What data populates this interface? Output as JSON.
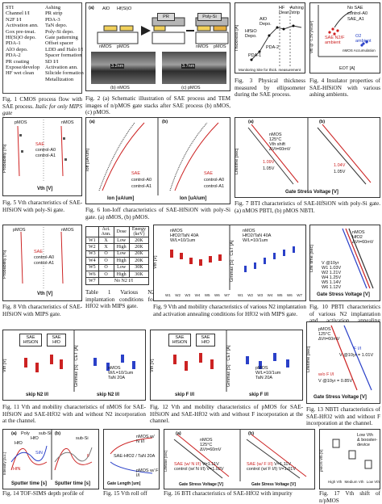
{
  "flow": {
    "col1": [
      "STI",
      "Channel I/I",
      "N2F I/I",
      "Activation ann.",
      "Gox pre-treat.",
      "Hf(Si)O depo.",
      "PDA-1",
      "AlO depo.",
      "PDA-2",
      "PR coating",
      "Expose/develop",
      "HF wet clean"
    ],
    "col2": [
      "Ashing",
      "PR strip",
      "PDA-3",
      "TaN depo.",
      "Poly-Si depo.",
      "Gate patterning",
      "Offset spacer",
      "LDD and Halo I/I",
      "Spacer formation",
      "SD I/I",
      "Activation ann.",
      "Silicide formation",
      "Metallization"
    ]
  },
  "fig1": {
    "caption": "Fig. 1 CMOS process flow with SAE process.",
    "italic": "Italic for only MIPS gate"
  },
  "fig2": {
    "caption": "Fig. 2 (a) Schematic illustration of SAE process and TEM images of n/pMOS gate stacks after SAE process (b) nMOS, (c) pMOS.",
    "a_label": "(a)",
    "alo": "AlO",
    "hfsio": "Hf(Si)O",
    "nmos": "nMOS",
    "pmos": "pMOS",
    "pr": "PR",
    "polysi": "Poly-Si",
    "tem1": "3.2nm",
    "tem2": "3.7nm",
    "b": "(b) nMOS",
    "c": "(c) pMOS"
  },
  "fig3": {
    "caption": "Fig. 3 Physical thickness measured by ellipsometer during the SAE process.",
    "ylabel": "Thickness [A]",
    "xlabel": "Monitoring Site for thick. measurement",
    "labels": [
      "HfSiO Depo.",
      "AlO Depo.",
      "PDA-1",
      "PDA-2",
      "HF clean",
      "Ashing /strip"
    ]
  },
  "fig4": {
    "caption": "Fig. 4 Insulator properties of SAE-HfSiON with various ashing ambients.",
    "ylabel": "Vfb @ -1.2V [A/cm²]",
    "xlabel": "EOT [A]",
    "legend": [
      "No SAE",
      "control-A0",
      "SAE_A1"
    ],
    "ann1": "SAE N2/F ambient",
    "ann2": "O2 ambient",
    "ann3": "nMOS Accumulation"
  },
  "fig5": {
    "caption": "Fig. 5 Vth characteristics of SAE-HfSiON with poly-Si gate.",
    "ylabel": "Probability [%]",
    "xlabel": "Vth [V]",
    "legend": [
      "SAE",
      "control-A0",
      "control-A1"
    ],
    "n": "nMOS",
    "p": "pMOS"
  },
  "fig6": {
    "caption": "Fig. 6 Ion-Ioff characteristics of SAE-HfSiON with poly-Si gate. (a) nMOS, (b) pMOS.",
    "a": "(a)",
    "b": "(b)",
    "ylabel": "Ioff [uA/um]",
    "xlabel": "Ion [uA/um]",
    "legend": [
      "SAE",
      "control-A0",
      "control-A1"
    ]
  },
  "fig7": {
    "caption": "Fig. 7 BTI characteristics of SAE-HfSiON with poly-Si gate. (a) nMOS PBTI, (b) pMOS NBTI.",
    "a": "(a)",
    "b": "(b)",
    "ylabel": "Lifetime [sec]",
    "xlabel": "Gate Stress Voltage [V]",
    "a_ann": [
      "nMOS",
      "125°C",
      "Vth shift",
      "ΔVt=60mV"
    ],
    "vals": [
      "1.09V",
      "1.05V",
      "1.04V",
      "1.05V"
    ]
  },
  "fig8": {
    "caption": "Fig. 8 Vth characteristics of SAE-HfSiON with MIPS gate.",
    "legend": [
      "SAE",
      "control-A0",
      "control-A1"
    ],
    "n": "nMOS",
    "p": "pMOS",
    "xlabel": "Vth [V]",
    "ylabel": "Probability [%]"
  },
  "table1": {
    "caption": "Table 1 Various N2 implantation conditions for HfO2 with MIPS gate.",
    "headers": [
      "",
      "Act. Ann.",
      "Dose",
      "Energy (keV)"
    ],
    "rows": [
      [
        "W1",
        "X",
        "Low",
        "20K"
      ],
      [
        "W2",
        "X",
        "High",
        "20K"
      ],
      [
        "W3",
        "O",
        "Low",
        "20K"
      ],
      [
        "W4",
        "O",
        "High",
        "20K"
      ],
      [
        "W5",
        "O",
        "Low",
        "30K"
      ],
      [
        "W6",
        "O",
        "High",
        "30K"
      ],
      [
        "W7",
        "No N2 I/I",
        ""
      ]
    ]
  },
  "fig9": {
    "caption": "Fig. 9 Vth and mobility characteristics of various N2 implantation and activation annealing conditions for HfO2 with MIPS gate.",
    "left_ylabel": "Vth [V]",
    "right_ylabel": "Gmmax [S] · CET [A]",
    "ann": [
      "nMOS",
      "HfO2/TaN 40A",
      "W/L=10/1um"
    ],
    "cats": [
      "W1",
      "W2",
      "W3",
      "W4",
      "W5",
      "W6",
      "W7"
    ]
  },
  "fig10": {
    "caption": "Fig. 10 PBTI characteristics of various N2 implantation and activation annealing conditions.",
    "ylabel": "Life time [sec]",
    "xlabel": "Gate Stress Voltage [V]",
    "legend_title": "V @10yr",
    "legend": [
      [
        "W1",
        "1.03V"
      ],
      [
        "W2",
        "1.21V"
      ],
      [
        "W4",
        "1.25V"
      ],
      [
        "W5",
        "1.14V"
      ],
      [
        "W6",
        "1.12V"
      ]
    ],
    "ann": [
      "nMOS",
      "HfO2",
      "ΔVt=60mV"
    ]
  },
  "fig11": {
    "caption": "Fig. 11 Vth and mobility characteristics of nMOS for SAE-HfSiON and SAE-HfO2 with and without N2 incorporation at the channel.",
    "boxes": [
      "SAE HfSiON",
      "SAE HfO"
    ],
    "xlabel": "skip N2 I/I",
    "ylabel1": "Vth [V]",
    "ylabel2": "Gmmax [S] · CET [A]",
    "ann": [
      "nMOS",
      "W/L=10/1um",
      "TaN 20A"
    ]
  },
  "fig12": {
    "caption": "Fig. 12 Vth and mobility characteristics of pMOS for SAE-HfSiON and SAE-HfO2 with and without F incorporation at the channel.",
    "boxes": [
      "SAE HfSiON",
      "SAE HfO"
    ],
    "xlabel": "skip F I/I",
    "ylabel1": "Vth [V]",
    "ylabel2": "Gmmax [S] · CET [A]",
    "ann": [
      "pMOS",
      "W/L=10/1um",
      "TaN 20A"
    ]
  },
  "fig13": {
    "caption": "Fig. 13 NBTI characteristics of SAE-HfO2 with and without F incorporation at the channel.",
    "ylabel": "Lifetime [sec]",
    "xlabel": "Gate Stress Voltage [V]",
    "ann": [
      "pMOS",
      "125°C",
      "ΔVt=60mV"
    ],
    "l1": "F I/I",
    "v1": "V @10yr = 1.01V",
    "l2": "w/o F I/I",
    "v2": "V @10yr = 0.85V"
  },
  "fig14": {
    "caption": "Fig. 14 TOF-SIMS depth profile of",
    "a": "(a)",
    "b": "(b)",
    "ylabel": "Intensity [a.u.]",
    "xlabel": "Sputter time [s]",
    "labels": [
      "HfO",
      "sub-Si",
      "SiN",
      "HfN",
      "F"
    ],
    "top": [
      "Poly",
      "HfO",
      "sub-Si"
    ]
  },
  "fig15": {
    "caption": "Fig. 15 Vth roll off",
    "xlabel": "Gate Length [um]",
    "labels": [
      "nMOS w/ N I/I",
      "SAE-HfO2 / TaN 20A",
      "pMOS w/ F I/I"
    ]
  },
  "fig16": {
    "caption": "Fig. 16 BTI characteristics of SAE-HfO2 with impurity",
    "a": "(a)",
    "b": "(b)",
    "ylabel": "Lifetime [sec]",
    "xlabel": "Gate Stress Voltage [V]",
    "a_ann": [
      "nMOS",
      "125°C",
      "ΔVt=60mV"
    ],
    "a_leg": [
      "SAE (w/ N I/I)",
      "control (w/ N I/I)"
    ],
    "a_vals": [
      "V=1.11V",
      "V=1.02V"
    ],
    "b_leg": [
      "SAE (w/ F I/I)",
      "control (w/ F I/I)"
    ],
    "b_vals": [
      "V=1.11V",
      "V=1.01V"
    ]
  },
  "fig17": {
    "caption": "Fig. 17 Vth shift of n/pMOS",
    "ylabel": "pMOS Vth [V]",
    "cats": [
      "High Vth",
      "Medium Vth",
      "Low Vth"
    ],
    "ann": [
      "Low Vth",
      "& booster-device"
    ]
  }
}
